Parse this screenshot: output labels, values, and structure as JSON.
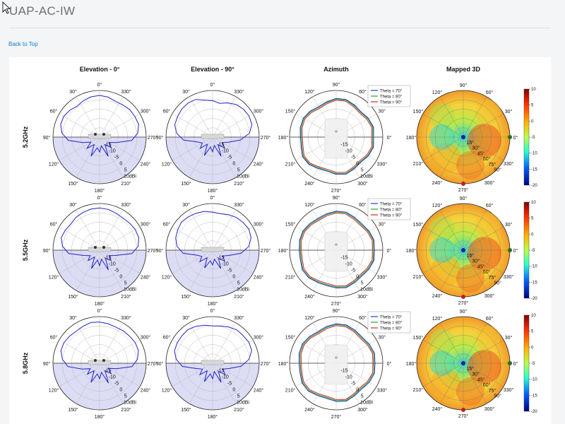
{
  "page": {
    "title": "UAP-AC-IW",
    "back_to_top": "Back to Top"
  },
  "colors": {
    "trace_elevation": "#2222cc",
    "theta70": "#1f3fbf",
    "theta80": "#2ca02c",
    "theta90": "#d62728",
    "lower_half_shade": "#dcdcf5",
    "link": "#0a7fd1"
  },
  "column_titles": [
    "Elevation - 0°",
    "Elevation - 90°",
    "Azimuth",
    "Mapped 3D"
  ],
  "row_labels": [
    "5.2GHz",
    "5.5GHz",
    "5.8GHz"
  ],
  "elevation_angle_labels": [
    "0°",
    "330°",
    "300°",
    "270°",
    "240°",
    "210°",
    "180°",
    "150°",
    "120°",
    "90°",
    "60°",
    "30°"
  ],
  "azimuth_angle_labels": [
    "90°",
    "60°",
    "30°",
    "0°",
    "330°",
    "300°",
    "270°",
    "240°",
    "210°",
    "180°",
    "150°",
    "120°"
  ],
  "radial_tick_labels": [
    "-15",
    "-10",
    "-5",
    "0",
    "5",
    "10dBi"
  ],
  "mapped3d_radial_labels": [
    "15°",
    "30°",
    "45°",
    "60°",
    "75°",
    "90°"
  ],
  "colorbar_ticks": [
    "10",
    "5",
    "0",
    "-5",
    "-10",
    "-15",
    "-20"
  ],
  "legend_entries": [
    "Theta = 70°",
    "Theta = 80°",
    "Theta = 90°"
  ],
  "chart_data": [
    {
      "type": "polar-line",
      "row": "5.2GHz",
      "column": "Elevation - 0°",
      "series": [
        {
          "values": [
            6.8,
            6.5,
            5.6,
            4.6,
            5.8,
            6.6,
            6.4,
            4.3,
            0.2,
            -8.5,
            -13.5,
            -9.1,
            -14.0,
            -6.5,
            -13.0,
            -10.4,
            -14.3,
            -6.4,
            -14.0,
            -9.8,
            -13.2,
            -8.7,
            0.8,
            4.7,
            6.5,
            6.3,
            6.3,
            5.5,
            5.2,
            6.3
          ]
        }
      ]
    },
    {
      "type": "polar-line",
      "row": "5.2GHz",
      "column": "Elevation - 90°",
      "series": [
        {
          "values": [
            3.4,
            4.3,
            6.5,
            7.0,
            6.8,
            6.1,
            5.6,
            3.2,
            -1.3,
            -9.8,
            -12.4,
            -9.3,
            -14.3,
            -7.0,
            -13.5,
            -10.5,
            -14.5,
            -6.5,
            -13.9,
            -9.5,
            -12.9,
            -9.3,
            -2.0,
            3.9,
            6.6,
            7.1,
            6.8,
            5.9,
            4.1,
            2.2
          ]
        }
      ]
    },
    {
      "type": "polar-line",
      "row": "5.2GHz",
      "column": "Azimuth",
      "series": [
        {
          "name": "Theta = 70°",
          "values": [
            4.1,
            4.9,
            4.0,
            2.8,
            3.7,
            5.0,
            4.9,
            3.5,
            2.6,
            3.6,
            4.4,
            3.9,
            3.0,
            3.3,
            5.1,
            4.9,
            3.3,
            2.7,
            3.9,
            4.7,
            3.4,
            2.7,
            4.0,
            4.9
          ]
        },
        {
          "name": "Theta = 80°",
          "values": [
            3.5,
            4.4,
            3.5,
            2.3,
            3.2,
            4.6,
            4.5,
            3.0,
            2.0,
            3.1,
            4.0,
            3.4,
            2.5,
            2.8,
            4.6,
            4.4,
            2.8,
            2.2,
            3.4,
            4.2,
            2.9,
            2.2,
            3.5,
            4.4
          ]
        },
        {
          "name": "Theta = 90°",
          "values": [
            2.8,
            3.7,
            2.8,
            1.6,
            2.5,
            3.9,
            3.8,
            2.3,
            1.3,
            2.4,
            3.3,
            2.7,
            1.8,
            2.1,
            3.9,
            3.7,
            2.1,
            1.5,
            2.7,
            3.5,
            2.2,
            1.5,
            2.8,
            3.7
          ]
        }
      ]
    },
    {
      "type": "heatmap",
      "row": "5.2GHz",
      "column": "Mapped 3D",
      "colorbar_range": [
        -20,
        10
      ]
    },
    {
      "type": "polar-line",
      "row": "5.5GHz",
      "column": "Elevation - 0°",
      "series": [
        {
          "values": [
            7.2,
            7.0,
            6.5,
            6.0,
            5.0,
            5.5,
            6.0,
            4.0,
            0.0,
            -9.0,
            -13.0,
            -10.0,
            -14.5,
            -7.0,
            -13.5,
            -10.0,
            -14.0,
            -6.0,
            -13.5,
            -10.0,
            -13.0,
            -9.0,
            1.0,
            5.0,
            6.5,
            6.5,
            6.0,
            5.5,
            6.0,
            6.8
          ]
        }
      ]
    },
    {
      "type": "polar-line",
      "row": "5.5GHz",
      "column": "Elevation - 90°",
      "series": [
        {
          "values": [
            4.5,
            5.5,
            6.0,
            6.5,
            7.0,
            6.0,
            5.0,
            3.0,
            -1.0,
            -9.5,
            -12.0,
            -9.0,
            -14.0,
            -7.5,
            -13.0,
            -10.5,
            -14.0,
            -7.0,
            -13.5,
            -9.5,
            -12.5,
            -9.0,
            -1.5,
            3.5,
            6.0,
            7.0,
            6.5,
            6.0,
            5.0,
            4.0
          ]
        }
      ]
    },
    {
      "type": "polar-line",
      "row": "5.5GHz",
      "column": "Azimuth",
      "series": [
        {
          "name": "Theta = 70°",
          "values": [
            4.6,
            5.2,
            4.5,
            3.6,
            4.2,
            5.3,
            5.1,
            4.2,
            3.5,
            4.1,
            4.7,
            4.4,
            3.7,
            3.9,
            5.2,
            5.1,
            4.0,
            3.5,
            4.3,
            5.0,
            4.0,
            3.4,
            4.4,
            5.2
          ]
        },
        {
          "name": "Theta = 80°",
          "values": [
            4.0,
            4.7,
            4.0,
            3.0,
            3.6,
            4.8,
            4.6,
            3.6,
            2.9,
            3.5,
            4.2,
            3.9,
            3.1,
            3.3,
            4.7,
            4.6,
            3.4,
            2.9,
            3.7,
            4.5,
            3.4,
            2.8,
            3.8,
            4.7
          ]
        },
        {
          "name": "Theta = 90°",
          "values": [
            3.3,
            4.0,
            3.3,
            2.3,
            2.9,
            4.1,
            3.9,
            2.9,
            2.2,
            2.8,
            3.5,
            3.2,
            2.4,
            2.6,
            4.0,
            3.9,
            2.7,
            2.2,
            3.0,
            3.8,
            2.7,
            2.1,
            3.1,
            4.0
          ]
        }
      ]
    },
    {
      "type": "heatmap",
      "row": "5.5GHz",
      "column": "Mapped 3D",
      "colorbar_range": [
        -20,
        10
      ]
    },
    {
      "type": "polar-line",
      "row": "5.8GHz",
      "column": "Elevation - 0°",
      "series": [
        {
          "values": [
            6.5,
            6.8,
            6.0,
            5.5,
            6.0,
            6.5,
            6.2,
            4.0,
            0.5,
            -8.0,
            -13.0,
            -9.5,
            -14.0,
            -6.5,
            -13.0,
            -10.0,
            -14.0,
            -6.0,
            -14.0,
            -10.0,
            -13.5,
            -8.5,
            1.0,
            4.5,
            6.3,
            6.5,
            6.0,
            5.8,
            5.5,
            6.0
          ]
        }
      ]
    },
    {
      "type": "polar-line",
      "row": "5.8GHz",
      "column": "Elevation - 90°",
      "series": [
        {
          "values": [
            4.0,
            5.0,
            6.0,
            6.8,
            6.5,
            6.3,
            5.8,
            3.5,
            -0.5,
            -9.0,
            -12.5,
            -9.0,
            -14.0,
            -7.0,
            -13.0,
            -10.0,
            -14.5,
            -6.5,
            -13.5,
            -9.0,
            -12.5,
            -9.0,
            -1.5,
            3.5,
            6.5,
            7.0,
            6.5,
            6.5,
            5.5,
            4.5
          ]
        }
      ]
    },
    {
      "type": "polar-line",
      "row": "5.8GHz",
      "column": "Azimuth",
      "series": [
        {
          "name": "Theta = 70°",
          "values": [
            5.0,
            5.5,
            4.6,
            3.6,
            4.5,
            5.5,
            5.4,
            4.4,
            3.4,
            4.3,
            5.1,
            4.7,
            3.8,
            4.1,
            5.4,
            5.4,
            4.0,
            3.4,
            4.6,
            5.3,
            4.0,
            3.3,
            4.6,
            5.5
          ]
        },
        {
          "name": "Theta = 80°",
          "values": [
            4.4,
            5.0,
            4.0,
            3.0,
            3.9,
            5.0,
            4.9,
            3.8,
            2.8,
            3.7,
            4.5,
            4.1,
            3.2,
            3.5,
            4.9,
            4.8,
            3.4,
            2.8,
            4.0,
            4.8,
            3.4,
            2.7,
            4.0,
            5.0
          ]
        },
        {
          "name": "Theta = 90°",
          "values": [
            3.6,
            4.3,
            3.3,
            2.3,
            3.2,
            4.3,
            4.2,
            3.1,
            2.1,
            3.0,
            3.8,
            3.4,
            2.5,
            2.8,
            4.2,
            4.1,
            2.7,
            2.1,
            3.3,
            4.1,
            2.7,
            2.0,
            3.3,
            4.3
          ]
        }
      ]
    },
    {
      "type": "heatmap",
      "row": "5.8GHz",
      "column": "Mapped 3D",
      "colorbar_range": [
        -20,
        10
      ]
    }
  ]
}
